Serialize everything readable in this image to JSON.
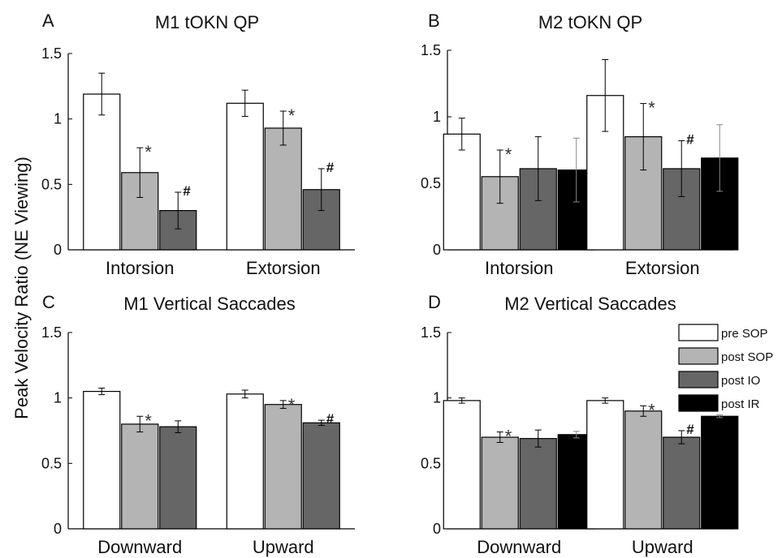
{
  "figure": {
    "ylabel": "Peak Velocity Ratio (NE Viewing)"
  },
  "legend": {
    "entries": [
      "pre SOP",
      "post SOP",
      "post IO",
      "post IR"
    ]
  },
  "colors": {
    "pre SOP": "#ffffff",
    "post SOP": "#b4b4b4",
    "post IO": "#666666",
    "post IR": "#000000"
  },
  "chart_data": [
    {
      "type": "bar",
      "letter": "A",
      "title": "M1 tOKN QP",
      "categories": [
        "Intorsion",
        "Extorsion"
      ],
      "ylim": [
        0,
        1.5
      ],
      "yticks": [
        "0",
        "0.5",
        "1",
        "1.5"
      ],
      "series": [
        {
          "name": "pre SOP",
          "values": [
            1.19,
            1.12
          ],
          "errors": [
            0.16,
            0.1
          ],
          "marks": [
            "",
            ""
          ]
        },
        {
          "name": "post SOP",
          "values": [
            0.59,
            0.93
          ],
          "errors": [
            0.19,
            0.13
          ],
          "marks": [
            "*",
            "*"
          ]
        },
        {
          "name": "post IO",
          "values": [
            0.3,
            0.46
          ],
          "errors": [
            0.14,
            0.16
          ],
          "marks": [
            "#",
            "#"
          ]
        }
      ]
    },
    {
      "type": "bar",
      "letter": "B",
      "title": "M2 tOKN QP",
      "categories": [
        "Intorsion",
        "Extorsion"
      ],
      "ylim": [
        0,
        1.5
      ],
      "yticks": [
        "0",
        "0.5",
        "1",
        "1.5"
      ],
      "series": [
        {
          "name": "pre SOP",
          "values": [
            0.87,
            1.16
          ],
          "errors": [
            0.12,
            0.27
          ],
          "marks": [
            "",
            ""
          ]
        },
        {
          "name": "post SOP",
          "values": [
            0.55,
            0.85
          ],
          "errors": [
            0.2,
            0.25
          ],
          "marks": [
            "*",
            "*"
          ]
        },
        {
          "name": "post IO",
          "values": [
            0.61,
            0.61
          ],
          "errors": [
            0.24,
            0.21
          ],
          "marks": [
            "",
            "#"
          ]
        },
        {
          "name": "post IR",
          "values": [
            0.6,
            0.69
          ],
          "errors": [
            0.24,
            0.25
          ],
          "marks": [
            "",
            ""
          ]
        }
      ]
    },
    {
      "type": "bar",
      "letter": "C",
      "title": "M1 Vertical Saccades",
      "categories": [
        "Downward",
        "Upward"
      ],
      "ylim": [
        0,
        1.5
      ],
      "yticks": [
        "0",
        "0.5",
        "1",
        "1.5"
      ],
      "series": [
        {
          "name": "pre SOP",
          "values": [
            1.05,
            1.03
          ],
          "errors": [
            0.025,
            0.03
          ],
          "marks": [
            "",
            ""
          ]
        },
        {
          "name": "post SOP",
          "values": [
            0.8,
            0.95
          ],
          "errors": [
            0.06,
            0.03
          ],
          "marks": [
            "*",
            "*"
          ]
        },
        {
          "name": "post IO",
          "values": [
            0.78,
            0.81
          ],
          "errors": [
            0.045,
            0.02
          ],
          "marks": [
            "",
            "#"
          ]
        }
      ]
    },
    {
      "type": "bar",
      "letter": "D",
      "title": "M2 Vertical Saccades",
      "categories": [
        "Downward",
        "Upward"
      ],
      "ylim": [
        0,
        1.5
      ],
      "yticks": [
        "0",
        "0.5",
        "1",
        "1.5"
      ],
      "legend": true,
      "series": [
        {
          "name": "pre SOP",
          "values": [
            0.98,
            0.98
          ],
          "errors": [
            0.02,
            0.02
          ],
          "marks": [
            "",
            ""
          ]
        },
        {
          "name": "post SOP",
          "values": [
            0.7,
            0.9
          ],
          "errors": [
            0.04,
            0.04
          ],
          "marks": [
            "*",
            "*"
          ]
        },
        {
          "name": "post IO",
          "values": [
            0.69,
            0.7
          ],
          "errors": [
            0.065,
            0.05
          ],
          "marks": [
            "",
            "#"
          ]
        },
        {
          "name": "post IR",
          "values": [
            0.72,
            0.86
          ],
          "errors": [
            0.025,
            0.01
          ],
          "marks": [
            "",
            ""
          ]
        }
      ]
    }
  ]
}
